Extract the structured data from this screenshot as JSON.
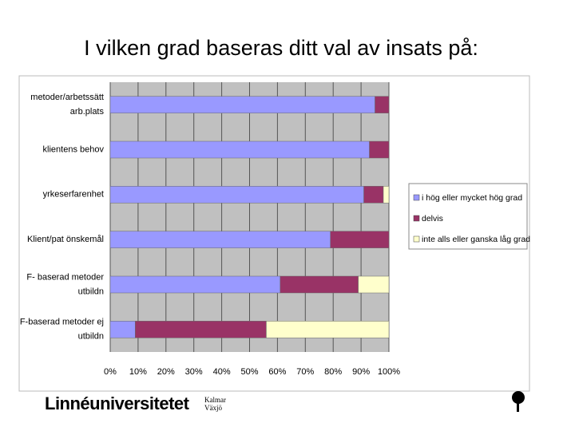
{
  "title": "I vilken grad baseras ditt val av insats på:",
  "chart_data": {
    "type": "stacked-barh",
    "categories": [
      [
        "metoder/arbetssätt",
        "arb.plats"
      ],
      [
        "klientens behov"
      ],
      [
        "yrkeserfarenhet"
      ],
      [
        "Klient/pat önskemål"
      ],
      [
        "F- baserad metoder",
        "utbildn"
      ],
      [
        "F-baserad metoder ej",
        "utbildn"
      ]
    ],
    "series": [
      {
        "name": "i hög eller mycket hög grad",
        "color": "#9999ff",
        "values": [
          95,
          93,
          91,
          79,
          61,
          9
        ]
      },
      {
        "name": "delvis",
        "color": "#993366",
        "values": [
          5,
          7,
          7,
          21,
          28,
          47
        ]
      },
      {
        "name": "inte alls eller ganska låg grad",
        "color": "#ffffcc",
        "values": [
          0,
          0,
          2,
          0,
          11,
          44
        ]
      }
    ],
    "xlim": [
      0,
      100
    ],
    "xticks": [
      {
        "value": 0,
        "label": "0%"
      },
      {
        "value": 10,
        "label": "10%"
      },
      {
        "value": 20,
        "label": "20%"
      },
      {
        "value": 30,
        "label": "30%"
      },
      {
        "value": 40,
        "label": "40%"
      },
      {
        "value": 50,
        "label": "50%"
      },
      {
        "value": 60,
        "label": "60%"
      },
      {
        "value": 70,
        "label": "70%"
      },
      {
        "value": 80,
        "label": "80%"
      },
      {
        "value": 90,
        "label": "90%"
      },
      {
        "value": 100,
        "label": "100%"
      }
    ],
    "grid": true,
    "legend": "right"
  },
  "footer": {
    "logo": "Linnéuniversitetet",
    "city1": "Kalmar",
    "city2": "Växjö"
  }
}
